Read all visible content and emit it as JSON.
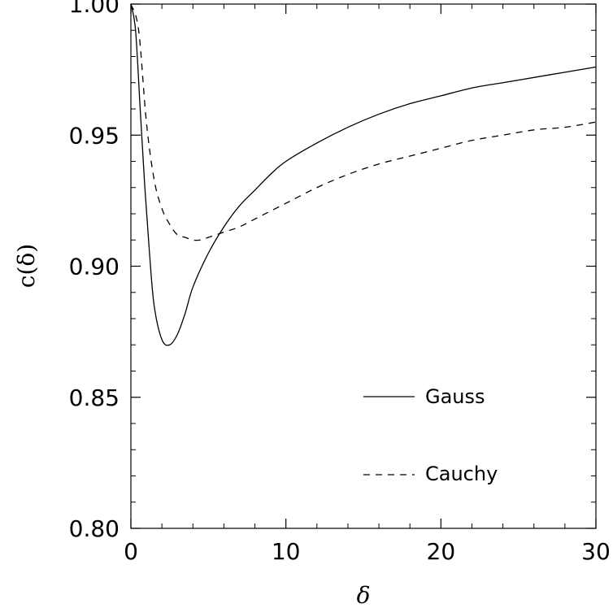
{
  "chart_data": {
    "type": "line",
    "xlabel": "δ",
    "ylabel": "c(δ)",
    "xlim": [
      0,
      30
    ],
    "ylim": [
      0.8,
      1.0
    ],
    "xticks": [
      0,
      10,
      20,
      30
    ],
    "xtick_labels": [
      "0",
      "10",
      "20",
      "30"
    ],
    "yticks": [
      0.8,
      0.85,
      0.9,
      0.95,
      1.0
    ],
    "ytick_labels": [
      "0.80",
      "0.85",
      "0.90",
      "0.95",
      "1.00"
    ],
    "grid": false,
    "legend_position": "bottom-right",
    "series": [
      {
        "name": "Gauss",
        "style": "solid",
        "color": "#000000",
        "x": [
          0,
          0.3,
          0.6,
          0.9,
          1.2,
          1.5,
          2.0,
          2.5,
          3.0,
          3.5,
          4.0,
          5.0,
          6.0,
          7.0,
          8.0,
          9.0,
          10.0,
          12.0,
          14.0,
          16.0,
          18.0,
          20.0,
          22.0,
          24.0,
          26.0,
          28.0,
          30.0
        ],
        "y": [
          1.0,
          0.99,
          0.96,
          0.93,
          0.905,
          0.885,
          0.872,
          0.87,
          0.874,
          0.882,
          0.892,
          0.905,
          0.915,
          0.923,
          0.929,
          0.935,
          0.94,
          0.947,
          0.953,
          0.958,
          0.962,
          0.965,
          0.968,
          0.97,
          0.972,
          0.974,
          0.976
        ]
      },
      {
        "name": "Cauchy",
        "style": "dashed",
        "color": "#000000",
        "x": [
          0,
          0.5,
          1.0,
          1.5,
          2.0,
          2.5,
          3.0,
          3.5,
          4.0,
          4.5,
          5.0,
          6.0,
          7.0,
          8.0,
          10.0,
          12.0,
          14.0,
          16.0,
          18.0,
          20.0,
          22.0,
          24.0,
          26.0,
          28.0,
          30.0
        ],
        "y": [
          1.0,
          0.99,
          0.955,
          0.933,
          0.922,
          0.916,
          0.912,
          0.911,
          0.91,
          0.91,
          0.911,
          0.913,
          0.915,
          0.918,
          0.924,
          0.93,
          0.935,
          0.939,
          0.942,
          0.945,
          0.948,
          0.95,
          0.952,
          0.953,
          0.955
        ]
      }
    ]
  }
}
